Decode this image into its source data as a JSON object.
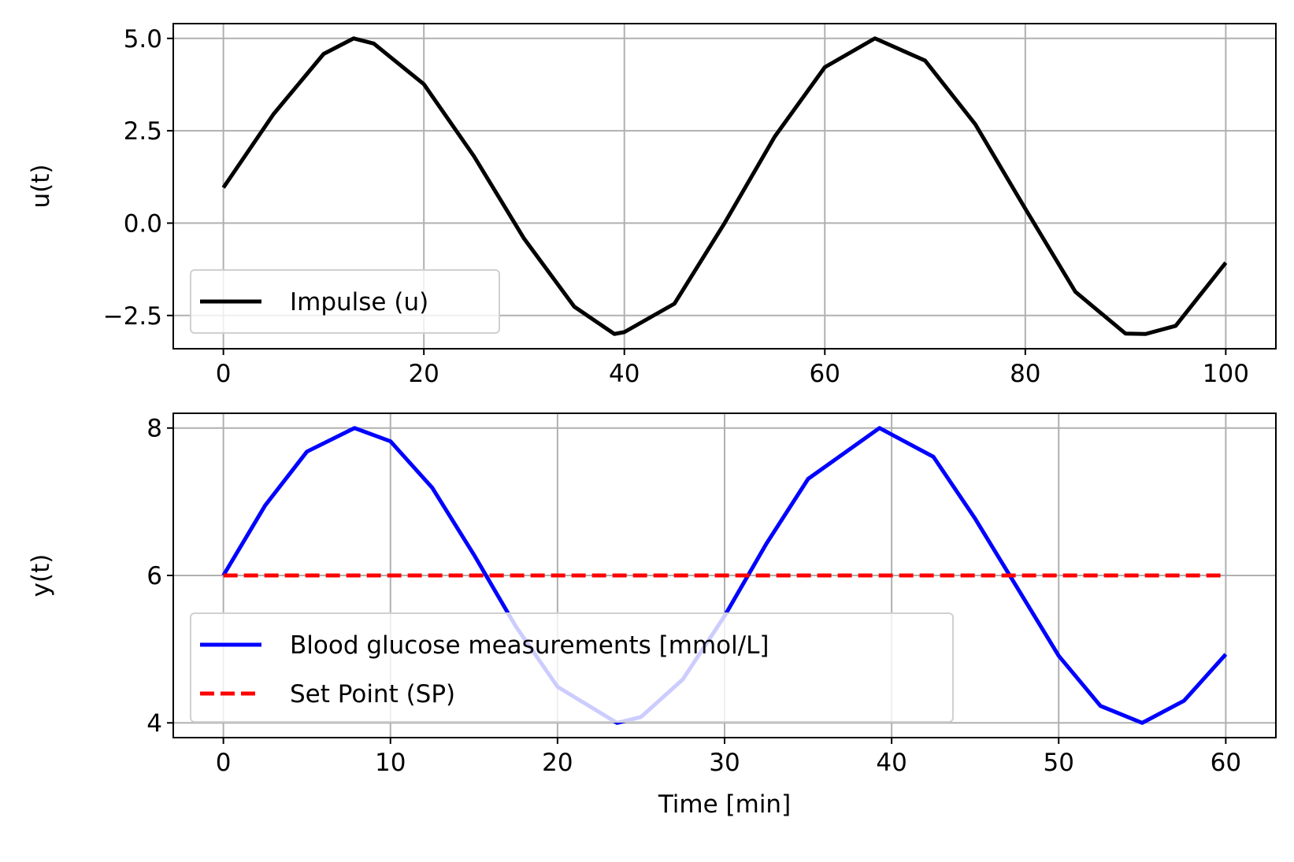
{
  "chart_data": [
    {
      "type": "line",
      "title": "",
      "xlabel": "",
      "ylabel": "u(t)",
      "xlim": [
        -5,
        105
      ],
      "ylim": [
        -3.4,
        5.4
      ],
      "xticks": [
        0,
        20,
        40,
        60,
        80,
        100
      ],
      "xtick_labels": [
        "0",
        "20",
        "40",
        "60",
        "80",
        "100"
      ],
      "yticks": [
        5.0,
        2.5,
        0.0,
        -2.5
      ],
      "ytick_labels": [
        "5.0",
        "2.5",
        "0.0",
        "−2.5"
      ],
      "grid": true,
      "legend_position": "lower-left",
      "x": [
        0,
        5,
        10,
        13,
        15,
        20,
        25,
        30,
        35,
        39,
        40,
        45,
        50,
        55,
        60,
        65,
        70,
        75,
        80,
        85,
        90,
        92,
        95,
        100
      ],
      "series": [
        {
          "name": "Impulse (u)",
          "color": "#000000",
          "style": "solid",
          "values": [
            0.96,
            2.95,
            4.58,
            5.0,
            4.86,
            3.76,
            1.81,
            -0.42,
            -2.26,
            -3.0,
            -2.95,
            -2.18,
            0.0,
            2.34,
            4.22,
            5.0,
            4.4,
            2.68,
            0.39,
            -1.86,
            -2.99,
            -3.0,
            -2.78,
            -1.07
          ]
        }
      ]
    },
    {
      "type": "line",
      "title": "",
      "xlabel": "Time [min]",
      "ylabel": "y(t)",
      "xlim": [
        -3,
        63
      ],
      "ylim": [
        3.8,
        8.2
      ],
      "xticks": [
        0,
        10,
        20,
        30,
        40,
        50,
        60
      ],
      "xtick_labels": [
        "0",
        "10",
        "20",
        "30",
        "40",
        "50",
        "60"
      ],
      "yticks": [
        8,
        6,
        4
      ],
      "ytick_labels": [
        "8",
        "6",
        "4"
      ],
      "grid": true,
      "legend_position": "lower-left",
      "x": [
        0,
        2.5,
        5,
        7.85,
        10,
        12.5,
        15,
        17.5,
        20,
        23.56,
        25,
        27.5,
        30,
        32.5,
        35,
        39.27,
        42.5,
        45,
        47.5,
        50,
        52.5,
        55,
        57.5,
        60
      ],
      "series": [
        {
          "name": "Blood glucose measurements [mmol/L]",
          "color": "#0000ff",
          "style": "solid",
          "values": [
            6.0,
            6.95,
            7.68,
            8.0,
            7.82,
            7.19,
            6.28,
            5.31,
            4.49,
            4.0,
            4.08,
            4.59,
            5.45,
            6.43,
            7.31,
            8.0,
            7.61,
            6.77,
            5.84,
            4.91,
            4.23,
            4.0,
            4.3,
            4.93
          ]
        },
        {
          "name": "Set Point (SP)",
          "color": "#ff0000",
          "style": "dashed",
          "values": [
            6,
            6,
            6,
            6,
            6,
            6,
            6,
            6,
            6,
            6,
            6,
            6,
            6,
            6,
            6,
            6,
            6,
            6,
            6,
            6,
            6,
            6,
            6,
            6
          ]
        }
      ]
    }
  ]
}
